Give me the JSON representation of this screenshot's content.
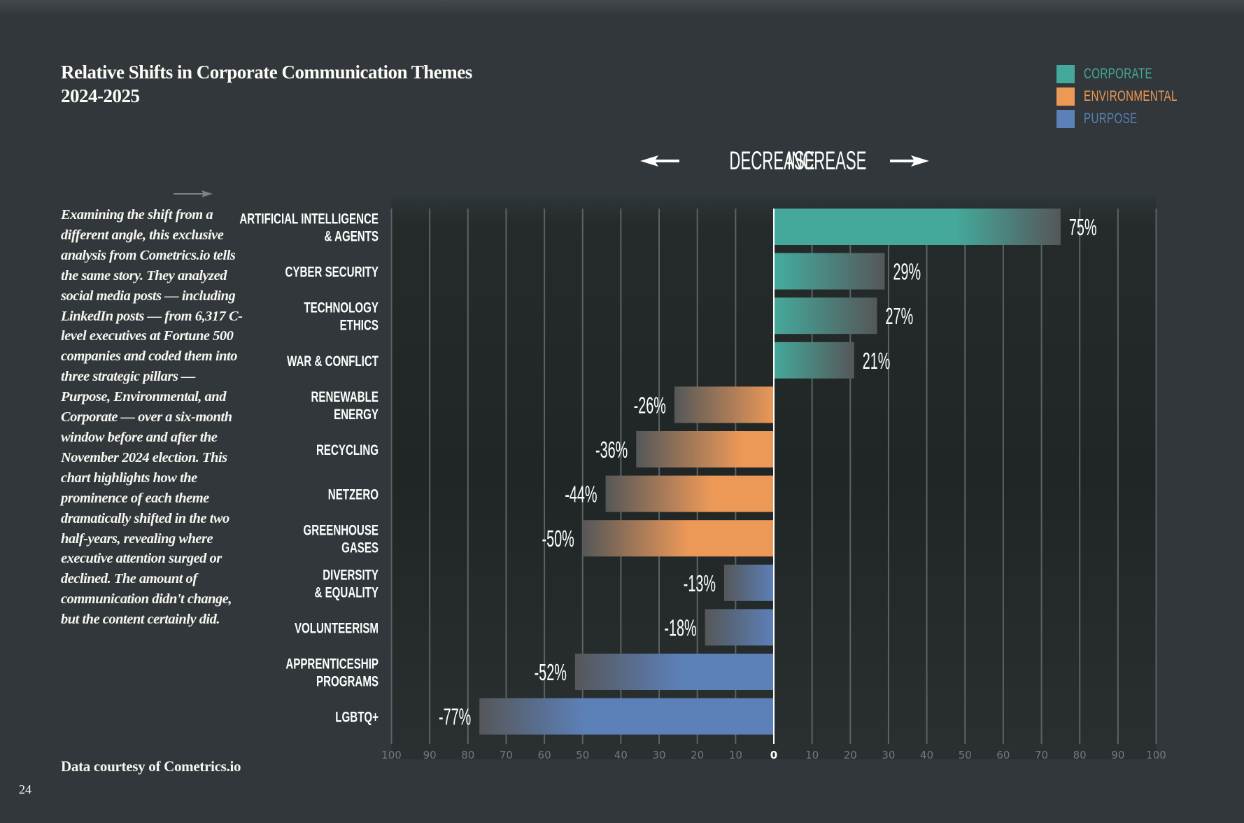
{
  "header": {
    "title_line1": "Relative Shifts in Corporate Communication Themes",
    "title_line2": "2024-2025"
  },
  "direction": {
    "decrease": "DECREASE",
    "increase": "INCREASE",
    "left_icon": "arrow-left-icon",
    "right_icon": "arrow-right-icon"
  },
  "intro": {
    "arrow_icon": "arrow-right-icon",
    "text": "Examining the shift from a different angle, this exclusive analysis from Cometrics.io tells the same story. They analyzed social media posts — including LinkedIn posts — from 6,317 C-level executives at Fortune 500 companies and coded them into three strategic pillars — Purpose, Environmental, and Corporate — over a six-month window before and after the November 2024 election. This chart highlights how the prominence of each theme dramatically shifted in the two half-years, revealing where executive attention surged or declined. The amount of communication didn't change, but the content certainly did."
  },
  "footer": {
    "source": "Data courtesy of Cometrics.io",
    "page_number": "24"
  },
  "colors": {
    "corporate": "#44a99b",
    "environmental": "#ec9857",
    "purpose": "#5c80b8",
    "fade": "#555759",
    "background": "#31373a",
    "plot_background": "#202525",
    "gridline": "#5b6365",
    "tick_label": "#727a7c"
  },
  "chart_data": {
    "type": "bar",
    "orientation": "horizontal",
    "title": "Relative Shifts in Corporate Communication Themes 2024-2025",
    "xlabel": "",
    "ylabel": "",
    "xlim": [
      -100,
      100
    ],
    "grid": true,
    "legend_position": "top-right",
    "legend": [
      {
        "key": "corporate",
        "label": "CORPORATE"
      },
      {
        "key": "environmental",
        "label": "ENVIRONMENTAL"
      },
      {
        "key": "purpose",
        "label": "PURPOSE"
      }
    ],
    "x_ticks": [
      {
        "value": -100,
        "label": "100"
      },
      {
        "value": -90,
        "label": "90"
      },
      {
        "value": -80,
        "label": "80"
      },
      {
        "value": -70,
        "label": "70"
      },
      {
        "value": -60,
        "label": "60"
      },
      {
        "value": -50,
        "label": "50"
      },
      {
        "value": -40,
        "label": "40"
      },
      {
        "value": -30,
        "label": "30"
      },
      {
        "value": -20,
        "label": "20"
      },
      {
        "value": -10,
        "label": "10"
      },
      {
        "value": 0,
        "label": "0"
      },
      {
        "value": 10,
        "label": "10"
      },
      {
        "value": 20,
        "label": "20"
      },
      {
        "value": 30,
        "label": "30"
      },
      {
        "value": 40,
        "label": "40"
      },
      {
        "value": 50,
        "label": "50"
      },
      {
        "value": 60,
        "label": "60"
      },
      {
        "value": 70,
        "label": "70"
      },
      {
        "value": 80,
        "label": "80"
      },
      {
        "value": 90,
        "label": "90"
      },
      {
        "value": 100,
        "label": "100"
      }
    ],
    "categories": [
      {
        "lines": [
          "ARTIFICIAL INTELLIGENCE",
          "& AGENTS"
        ],
        "group": "corporate",
        "value": 75,
        "label": "75%"
      },
      {
        "lines": [
          "CYBER SECURITY"
        ],
        "group": "corporate",
        "value": 29,
        "label": "29%"
      },
      {
        "lines": [
          "TECHNOLOGY",
          "ETHICS"
        ],
        "group": "corporate",
        "value": 27,
        "label": "27%"
      },
      {
        "lines": [
          "WAR & CONFLICT"
        ],
        "group": "corporate",
        "value": 21,
        "label": "21%"
      },
      {
        "lines": [
          "RENEWABLE",
          "ENERGY"
        ],
        "group": "environmental",
        "value": -26,
        "label": "-26%"
      },
      {
        "lines": [
          "RECYCLING"
        ],
        "group": "environmental",
        "value": -36,
        "label": "-36%"
      },
      {
        "lines": [
          "NETZERO"
        ],
        "group": "environmental",
        "value": -44,
        "label": "-44%"
      },
      {
        "lines": [
          "GREENHOUSE",
          "GASES"
        ],
        "group": "environmental",
        "value": -50,
        "label": "-50%"
      },
      {
        "lines": [
          "DIVERSITY",
          "& EQUALITY"
        ],
        "group": "purpose",
        "value": -13,
        "label": "-13%"
      },
      {
        "lines": [
          "VOLUNTEERISM"
        ],
        "group": "purpose",
        "value": -18,
        "label": "-18%"
      },
      {
        "lines": [
          "APPRENTICESHIP",
          "PROGRAMS"
        ],
        "group": "purpose",
        "value": -52,
        "label": "-52%"
      },
      {
        "lines": [
          "LGBTQ+"
        ],
        "group": "purpose",
        "value": -77,
        "label": "-77%"
      }
    ]
  }
}
